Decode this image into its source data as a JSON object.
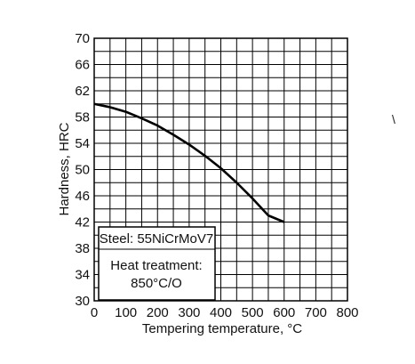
{
  "chart_data": {
    "type": "line",
    "title": "",
    "xlabel": "Tempering temperature, °C",
    "ylabel": "Hardness, HRC",
    "xlim": [
      0,
      800
    ],
    "ylim": [
      30,
      70
    ],
    "grid": true,
    "x_major_ticks": [
      0,
      100,
      200,
      300,
      400,
      500,
      600,
      700,
      800
    ],
    "x_minor_step": 50,
    "y_major_ticks": [
      30,
      34,
      38,
      42,
      46,
      50,
      54,
      58,
      62,
      66,
      70
    ],
    "y_minor_step": 2,
    "series": [
      {
        "x": [
          0,
          50,
          100,
          150,
          200,
          250,
          300,
          350,
          400,
          450,
          500,
          550,
          600
        ],
        "y": [
          60,
          59.5,
          58.8,
          57.8,
          56.7,
          55.3,
          53.8,
          52.1,
          50.2,
          48.0,
          45.6,
          43.0,
          42.0
        ],
        "color": "#000000"
      }
    ],
    "annotations": {
      "steel": "Steel: 55NiCrMoV7",
      "heat_treatment_label": "Heat treatment:",
      "heat_treatment_value": "850°C/O"
    }
  },
  "stray_glyph": "\\"
}
